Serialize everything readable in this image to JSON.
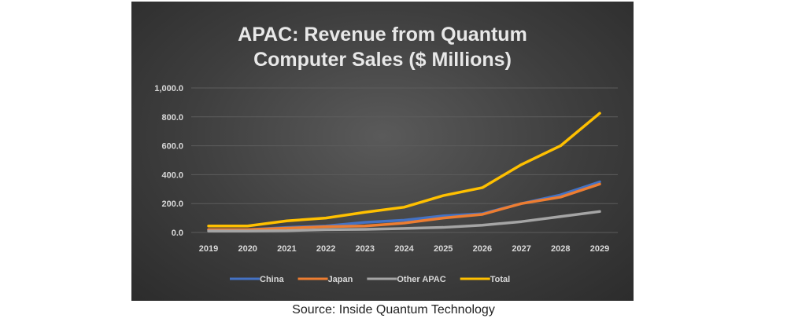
{
  "chart_data": {
    "type": "line",
    "title_lines": [
      "APAC: Revenue from Quantum",
      "Computer Sales ($ Millions)"
    ],
    "categories": [
      "2019",
      "2020",
      "2021",
      "2022",
      "2023",
      "2024",
      "2025",
      "2026",
      "2027",
      "2028",
      "2029"
    ],
    "y_ticks": [
      "0.0",
      "200.0",
      "400.0",
      "600.0",
      "800.0",
      "1,000.0"
    ],
    "ylim": [
      0,
      1000
    ],
    "grid": true,
    "legend_position": "bottom",
    "series": [
      {
        "name": "China",
        "color": "#4472c4",
        "values": [
          20,
          20,
          35,
          45,
          70,
          85,
          115,
          130,
          200,
          260,
          350
        ]
      },
      {
        "name": "Japan",
        "color": "#ed7d31",
        "values": [
          20,
          20,
          30,
          40,
          45,
          65,
          100,
          125,
          200,
          245,
          335
        ]
      },
      {
        "name": "Other APAC",
        "color": "#a5a5a5",
        "values": [
          10,
          10,
          12,
          20,
          22,
          28,
          35,
          50,
          75,
          110,
          145
        ]
      },
      {
        "name": "Total",
        "color": "#ffc000",
        "values": [
          45,
          45,
          80,
          100,
          140,
          175,
          255,
          310,
          470,
          600,
          825
        ]
      }
    ]
  },
  "source": "Source:  Inside Quantum Technology"
}
